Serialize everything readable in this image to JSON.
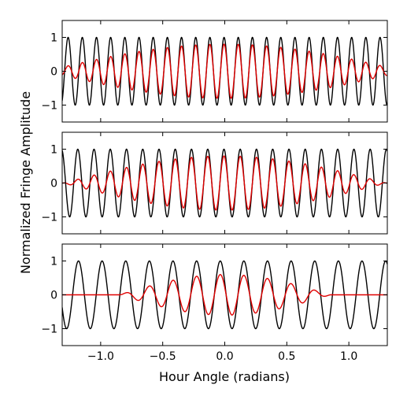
{
  "figure": {
    "ylabel": "Normalized Fringe Amplitude",
    "xlabel": "Hour Angle (radians)"
  },
  "chart_data": [
    {
      "type": "line",
      "panel": "top",
      "xlim": [
        -1.31,
        1.31
      ],
      "ylim": [
        -1.5,
        1.5
      ],
      "xticks": [
        -1.0,
        -0.5,
        0.0,
        0.5,
        1.0
      ],
      "yticks": [
        -1,
        0,
        1
      ],
      "ytick_labels": [
        "−1",
        "0",
        "1"
      ],
      "grid": false,
      "series": [
        {
          "color": "#000000",
          "model": "cos",
          "amplitude": 1.0,
          "angular_frequency": 55.0,
          "phase": 0.3
        },
        {
          "color": "#e00000",
          "model": "cos-envelope",
          "amplitude": 0.8,
          "angular_frequency": 55.0,
          "phase": 0.3,
          "envelope_halfwidth": 1.45
        }
      ]
    },
    {
      "type": "line",
      "panel": "middle",
      "xlim": [
        -1.31,
        1.31
      ],
      "ylim": [
        -1.5,
        1.5
      ],
      "xticks": [
        -1.0,
        -0.5,
        0.0,
        0.5,
        1.0
      ],
      "yticks": [
        -1,
        0,
        1
      ],
      "ytick_labels": [
        "−1",
        "0",
        "1"
      ],
      "grid": false,
      "series": [
        {
          "color": "#000000",
          "model": "cos",
          "amplitude": 1.0,
          "angular_frequency": 48.0,
          "phase": 0.3
        },
        {
          "color": "#e00000",
          "model": "cos-envelope",
          "amplitude": 0.8,
          "angular_frequency": 48.0,
          "phase": 0.3,
          "envelope_halfwidth": 1.3
        }
      ]
    },
    {
      "type": "line",
      "panel": "bottom",
      "xlim": [
        -1.31,
        1.31
      ],
      "ylim": [
        -1.5,
        1.5
      ],
      "xticks": [
        -1.0,
        -0.5,
        0.0,
        0.5,
        1.0
      ],
      "xtick_labels": [
        "−1.0",
        "−0.5",
        "0.0",
        "0.5",
        "1.0"
      ],
      "yticks": [
        -1,
        0,
        1
      ],
      "ytick_labels": [
        "−1",
        "0",
        "1"
      ],
      "grid": false,
      "series": [
        {
          "color": "#000000",
          "model": "cos",
          "amplitude": 1.0,
          "angular_frequency": 33.0,
          "phase": 1.2
        },
        {
          "color": "#e00000",
          "model": "cos-envelope",
          "amplitude": 0.6,
          "angular_frequency": 33.0,
          "phase": 1.2,
          "envelope_halfwidth": 0.85
        }
      ]
    }
  ]
}
